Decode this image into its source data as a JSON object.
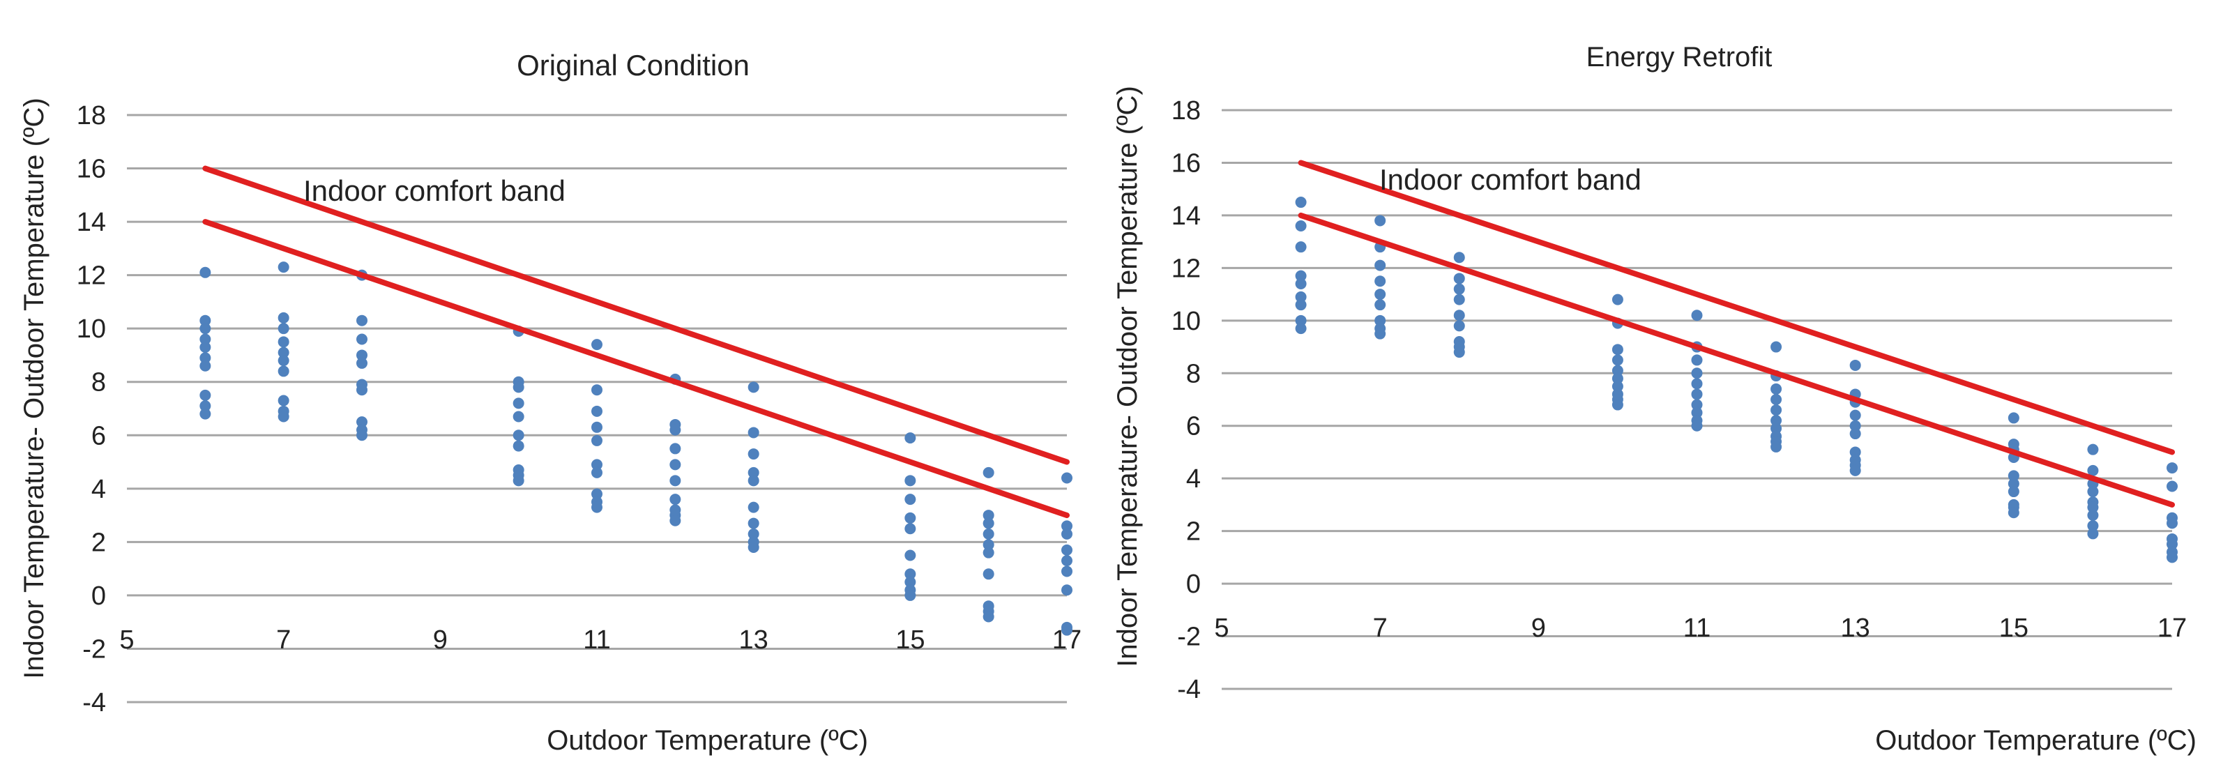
{
  "chart_data": [
    {
      "type": "scatter",
      "title": "Original Condition",
      "xlabel": "Outdoor Temperature   (ºC)",
      "ylabel": "Indoor Temperature-  Outdoor Temperature   (ºC)",
      "xlim": [
        5,
        17
      ],
      "ylim": [
        -4,
        18
      ],
      "xticks": [
        "5",
        "7",
        "9",
        "11",
        "13",
        "15",
        "17"
      ],
      "yticks": [
        "-4",
        "-2",
        "0",
        "2",
        "4",
        "6",
        "8",
        "10",
        "12",
        "14",
        "16",
        "18"
      ],
      "grid": "horizontal",
      "annotation": "Indoor comfort band",
      "band_lines": [
        {
          "x": [
            6,
            17
          ],
          "y": [
            16,
            5
          ]
        },
        {
          "x": [
            6,
            17
          ],
          "y": [
            14,
            3
          ]
        }
      ],
      "colors": {
        "points": "#4f81bd",
        "band": "#e02020",
        "grid": "#a6a6a6"
      },
      "series": [
        {
          "x": 6,
          "y": [
            12.1,
            10.3,
            10.0,
            9.6,
            9.3,
            8.9,
            8.6,
            7.5,
            7.1,
            6.8
          ]
        },
        {
          "x": 7,
          "y": [
            12.3,
            10.4,
            10.0,
            9.5,
            9.1,
            8.8,
            8.4,
            7.3,
            6.9,
            6.7
          ]
        },
        {
          "x": 8,
          "y": [
            12.0,
            10.3,
            9.6,
            9.0,
            8.7,
            7.9,
            7.7,
            6.5,
            6.2,
            6.0
          ]
        },
        {
          "x": 10,
          "y": [
            9.9,
            8.0,
            7.8,
            7.2,
            6.7,
            6.0,
            5.6,
            4.7,
            4.5,
            4.3
          ]
        },
        {
          "x": 11,
          "y": [
            9.4,
            7.7,
            6.9,
            6.3,
            5.8,
            4.9,
            4.6,
            3.8,
            3.5,
            3.3
          ]
        },
        {
          "x": 12,
          "y": [
            8.1,
            6.4,
            6.2,
            5.5,
            4.9,
            4.3,
            3.6,
            3.2,
            3.0,
            2.8
          ]
        },
        {
          "x": 13,
          "y": [
            7.8,
            6.1,
            5.3,
            4.6,
            4.3,
            3.3,
            2.7,
            2.3,
            2.0,
            1.8
          ]
        },
        {
          "x": 15,
          "y": [
            5.9,
            4.3,
            3.6,
            2.9,
            2.5,
            1.5,
            0.8,
            0.5,
            0.2,
            0.0
          ]
        },
        {
          "x": 16,
          "y": [
            4.6,
            3.0,
            2.7,
            2.3,
            1.9,
            1.6,
            0.8,
            -0.4,
            -0.6,
            -0.8
          ]
        },
        {
          "x": 17,
          "y": [
            4.4,
            2.6,
            2.3,
            1.7,
            1.3,
            0.9,
            0.2,
            -1.2,
            -1.3
          ]
        }
      ]
    },
    {
      "type": "scatter",
      "title": "Energy Retrofit",
      "xlabel": "Outdoor Temperature   (ºC)",
      "ylabel": "Indoor Temperature-  Outdoor Temperature   (ºC)",
      "xlim": [
        5,
        17
      ],
      "ylim": [
        -4,
        18
      ],
      "xticks": [
        "5",
        "7",
        "9",
        "11",
        "13",
        "15",
        "17"
      ],
      "yticks": [
        "-4",
        "-2",
        "0",
        "2",
        "4",
        "6",
        "8",
        "10",
        "12",
        "14",
        "16",
        "18"
      ],
      "grid": "horizontal",
      "annotation": "Indoor comfort band",
      "band_lines": [
        {
          "x": [
            6,
            17
          ],
          "y": [
            16,
            5
          ]
        },
        {
          "x": [
            6,
            17
          ],
          "y": [
            14,
            3
          ]
        }
      ],
      "colors": {
        "points": "#4f81bd",
        "band": "#e02020",
        "grid": "#a6a6a6"
      },
      "series": [
        {
          "x": 6,
          "y": [
            14.5,
            13.6,
            12.8,
            11.7,
            11.4,
            10.9,
            10.6,
            10.0,
            9.7
          ]
        },
        {
          "x": 7,
          "y": [
            13.8,
            12.8,
            12.1,
            11.5,
            11.0,
            10.6,
            10.0,
            9.7,
            9.5
          ]
        },
        {
          "x": 8,
          "y": [
            12.4,
            11.6,
            11.2,
            10.8,
            10.2,
            9.8,
            9.2,
            9.0,
            8.8
          ]
        },
        {
          "x": 10,
          "y": [
            10.8,
            9.9,
            8.9,
            8.5,
            8.1,
            7.8,
            7.5,
            7.2,
            7.0,
            6.8
          ]
        },
        {
          "x": 11,
          "y": [
            10.2,
            9.0,
            8.5,
            8.0,
            7.6,
            7.2,
            6.8,
            6.5,
            6.2,
            6.0
          ]
        },
        {
          "x": 12,
          "y": [
            9.0,
            7.9,
            7.4,
            7.0,
            6.6,
            6.2,
            5.9,
            5.6,
            5.4,
            5.2
          ]
        },
        {
          "x": 13,
          "y": [
            8.3,
            7.2,
            6.9,
            6.4,
            6.0,
            5.7,
            5.0,
            4.7,
            4.5,
            4.3
          ]
        },
        {
          "x": 15,
          "y": [
            6.3,
            5.3,
            5.1,
            4.8,
            4.1,
            3.8,
            3.5,
            3.0,
            2.9,
            2.7
          ]
        },
        {
          "x": 16,
          "y": [
            5.1,
            4.3,
            3.8,
            3.5,
            3.1,
            2.9,
            2.6,
            2.2,
            1.9
          ]
        },
        {
          "x": 17,
          "y": [
            4.4,
            3.7,
            2.5,
            2.3,
            1.7,
            1.5,
            1.2,
            1.0
          ]
        }
      ]
    }
  ]
}
